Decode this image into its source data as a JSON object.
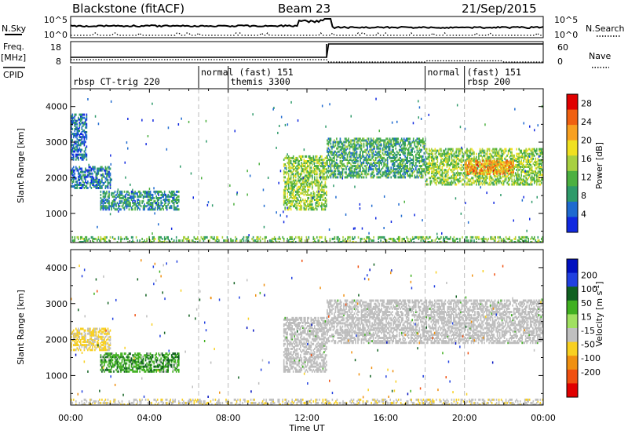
{
  "header": {
    "station": "Blackstone (fitACF)",
    "beam": "Beam 23",
    "date": "21/Sep/2015"
  },
  "top_panels": {
    "nsky_label": "N.Sky",
    "nsearch_label": "N.Search",
    "nsky_ticks": [
      "10^5",
      "10^0"
    ],
    "nsearch_ticks": [
      "10^5",
      "10^0"
    ],
    "freq_label": "Freq.",
    "freq_unit": "[MHz]",
    "freq_ticks": [
      "18",
      "8"
    ],
    "nave_label": "Nave",
    "nave_ticks": [
      "60",
      "0"
    ],
    "cpid_label": "CPID",
    "freq_step_time_h": 13.0
  },
  "cpid_segments": [
    {
      "start_h": 0.0,
      "label": "rbsp CT-trig 220",
      "row": 2
    },
    {
      "start_h": 6.5,
      "label": "normal (fast) 151",
      "row": 1
    },
    {
      "start_h": 8.0,
      "label": "themis 3300",
      "row": 2
    },
    {
      "start_h": 18.0,
      "label": "normal",
      "row": 1
    },
    {
      "start_h": 20.0,
      "label": "(fast) 151",
      "row": 1
    },
    {
      "start_h": 20.0,
      "label": "rbsp 200",
      "row": 2
    }
  ],
  "colors": {
    "power_scale": [
      "#1028e0",
      "#1e6ad0",
      "#2e9a6a",
      "#4cb040",
      "#a8d040",
      "#f0e020",
      "#f8a020",
      "#f06010",
      "#e00000"
    ],
    "velocity_scale": [
      "#0010c0",
      "#2040e0",
      "#106020",
      "#40b020",
      "#a0e060",
      "#c0c0c0",
      "#f8d020",
      "#f09010",
      "#f05010",
      "#e00000"
    ],
    "ground_scatter": "#bdbdbd"
  },
  "chart_data": [
    {
      "type": "heatmap",
      "title": "",
      "xlabel": "Time UT",
      "ylabel": "Slant Range [km]",
      "xlim": [
        0,
        24
      ],
      "ylim": [
        180,
        4500
      ],
      "x_tick_labels": [
        "00:00",
        "04:00",
        "08:00",
        "12:00",
        "16:00",
        "20:00",
        "00:00"
      ],
      "y_tick_labels": [
        "1000",
        "2000",
        "3000",
        "4000"
      ],
      "colorbar": {
        "label": "Power [dB]",
        "tick_labels": [
          "4",
          "8",
          "12",
          "16",
          "20",
          "24",
          "28"
        ],
        "range": [
          0,
          30
        ]
      },
      "dashed_times_h": [
        6.5,
        8.0,
        18.0,
        20.0
      ],
      "echo_regions": [
        {
          "t_start": 0.0,
          "t_end": 2.0,
          "r_low": 1700,
          "r_high": 2300,
          "power_db": 6
        },
        {
          "t_start": 1.5,
          "t_end": 5.5,
          "r_low": 1100,
          "r_high": 1600,
          "power_db": 8
        },
        {
          "t_start": 0.0,
          "t_end": 0.8,
          "r_low": 2500,
          "r_high": 3800,
          "power_db": 5
        },
        {
          "t_start": 10.8,
          "t_end": 13.0,
          "r_low": 1100,
          "r_high": 2600,
          "power_db": 14
        },
        {
          "t_start": 13.0,
          "t_end": 18.0,
          "r_low": 2000,
          "r_high": 3100,
          "power_db": 10
        },
        {
          "t_start": 18.0,
          "t_end": 24.0,
          "r_low": 1800,
          "r_high": 2800,
          "power_db": 14
        },
        {
          "t_start": 20.0,
          "t_end": 22.5,
          "r_low": 2100,
          "r_high": 2500,
          "power_db": 22
        },
        {
          "t_start": 0.0,
          "t_end": 24.0,
          "r_low": 180,
          "r_high": 350,
          "power_db": 12
        }
      ]
    },
    {
      "type": "heatmap",
      "title": "",
      "xlabel": "Time UT",
      "ylabel": "Slant Range [km]",
      "xlim": [
        0,
        24
      ],
      "ylim": [
        180,
        4500
      ],
      "x_tick_labels": [
        "00:00",
        "04:00",
        "08:00",
        "12:00",
        "16:00",
        "20:00",
        "00:00"
      ],
      "y_tick_labels": [
        "1000",
        "2000",
        "3000",
        "4000"
      ],
      "colorbar": {
        "label": "Velocity [m s-1]",
        "label_main": "Velocity [m s",
        "label_exp": "-1",
        "label_close": "]",
        "tick_labels": [
          "200",
          "100",
          "50",
          "15",
          "-15",
          "-50",
          "-100",
          "-200"
        ],
        "range": [
          -250,
          250
        ]
      },
      "dashed_times_h": [
        6.5,
        8.0,
        18.0,
        20.0
      ],
      "echo_regions": [
        {
          "t_start": 0.0,
          "t_end": 2.0,
          "r_low": 1700,
          "r_high": 2300,
          "velocity": -60
        },
        {
          "t_start": 1.5,
          "t_end": 5.5,
          "r_low": 1100,
          "r_high": 1600,
          "velocity": 40
        },
        {
          "t_start": 10.8,
          "t_end": 13.0,
          "r_low": 1100,
          "r_high": 2600,
          "velocity": 0
        },
        {
          "t_start": 13.0,
          "t_end": 24.0,
          "r_low": 1900,
          "r_high": 3100,
          "velocity": 0
        },
        {
          "t_start": 0.0,
          "t_end": 24.0,
          "r_low": 180,
          "r_high": 350,
          "velocity": -40
        }
      ]
    }
  ]
}
